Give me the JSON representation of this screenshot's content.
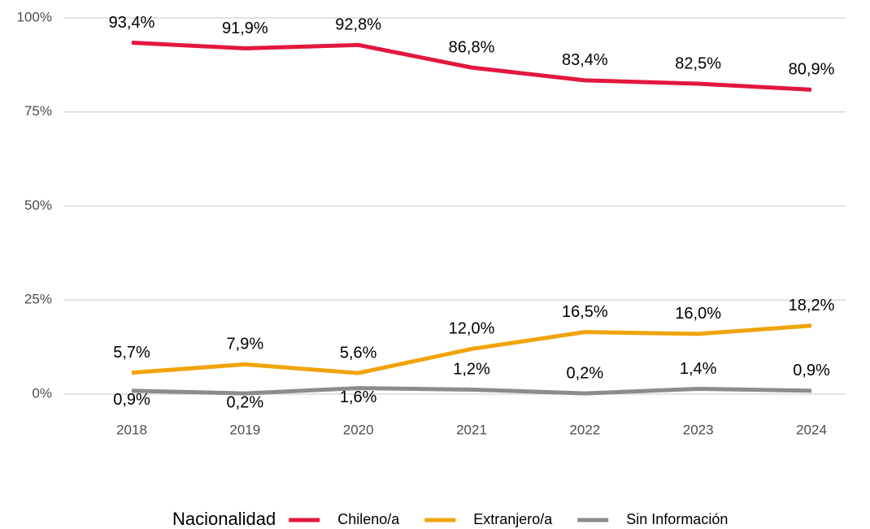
{
  "chart_data": {
    "type": "line",
    "categories": [
      "2018",
      "2019",
      "2020",
      "2021",
      "2022",
      "2023",
      "2024"
    ],
    "ylim": [
      0,
      100
    ],
    "yticks": [
      {
        "value": 0,
        "label": "0%"
      },
      {
        "value": 25,
        "label": "25%"
      },
      {
        "value": 50,
        "label": "50%"
      },
      {
        "value": 75,
        "label": "75%"
      },
      {
        "value": 100,
        "label": "100%"
      }
    ],
    "grid": true,
    "legend_title": "Nacionalidad",
    "legend_position": "bottom",
    "series": [
      {
        "name": "Chileno/a",
        "color": "#e3173e",
        "values": [
          93.4,
          91.9,
          92.8,
          86.8,
          83.4,
          82.5,
          80.9
        ],
        "value_labels": [
          "93,4%",
          "91,9%",
          "92,8%",
          "86,8%",
          "83,4%",
          "82,5%",
          "80,9%"
        ]
      },
      {
        "name": "Extranjero/a",
        "color": "#f0a30a",
        "values": [
          5.7,
          7.9,
          5.6,
          12.0,
          16.5,
          16.0,
          18.2
        ],
        "value_labels": [
          "5,7%",
          "7,9%",
          "5,6%",
          "12,0%",
          "16,5%",
          "16,0%",
          "18,2%"
        ]
      },
      {
        "name": "Sin Información",
        "color": "#8c8c8c",
        "values": [
          0.9,
          0.2,
          1.6,
          1.2,
          0.2,
          1.4,
          0.9
        ],
        "value_labels": [
          "0,9%",
          "0,2%",
          "1,6%",
          "1,2%",
          "0,2%",
          "1,4%",
          "0,9%"
        ]
      }
    ]
  }
}
